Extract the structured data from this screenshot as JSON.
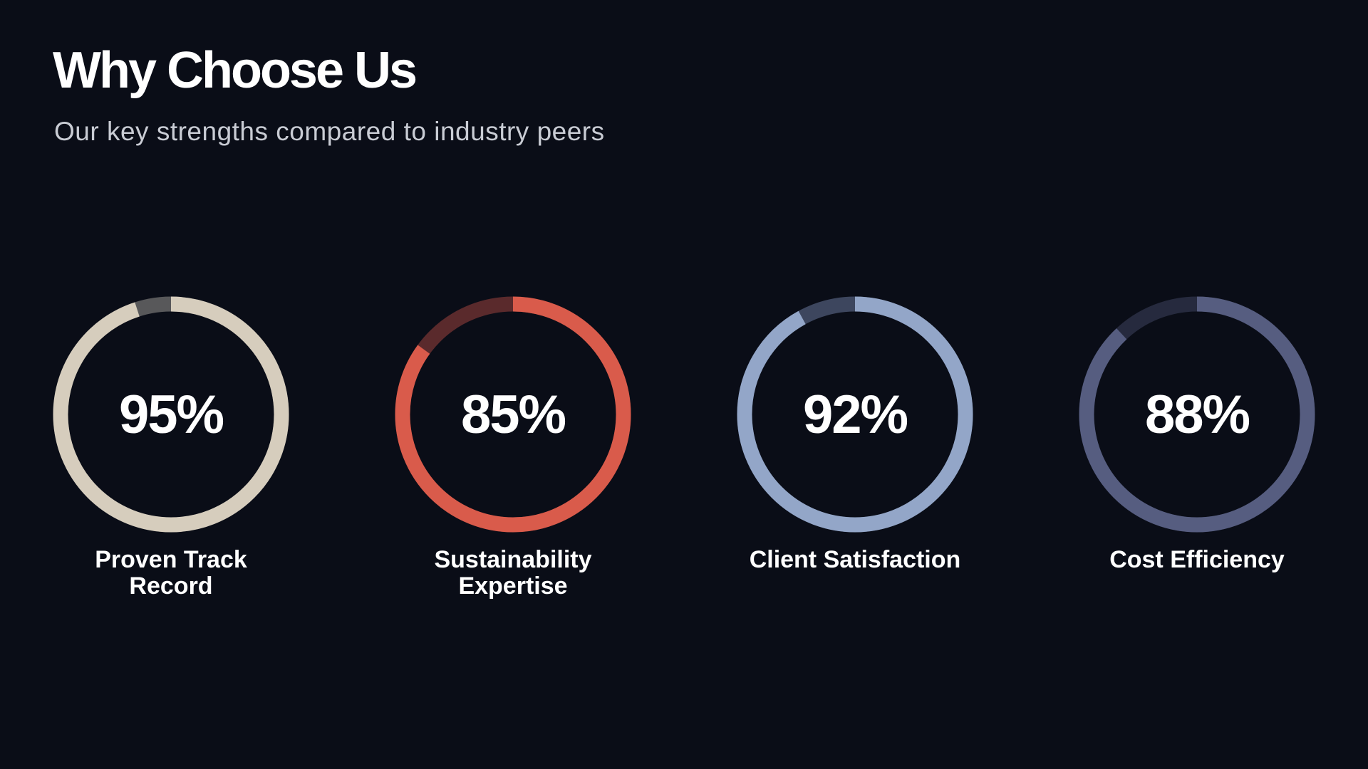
{
  "chart_data": {
    "type": "ring-gauges",
    "title": "Why Choose Us",
    "subtitle": "Our key strengths compared to industry peers",
    "categories": [
      "Proven Track Record",
      "Sustainability Expertise",
      "Client Satisfaction",
      "Cost Efficiency"
    ],
    "values": [
      95,
      85,
      92,
      88
    ],
    "value_labels": [
      "95%",
      "85%",
      "92%",
      "88%"
    ],
    "ylim": [
      0,
      100
    ],
    "colors": [
      "#d6cdbd",
      "#d95b4b",
      "#93a6c8",
      "#565d80"
    ],
    "track_colors": [
      "#58585a",
      "#5a2a2c",
      "#3d465e",
      "#262a3e"
    ]
  }
}
